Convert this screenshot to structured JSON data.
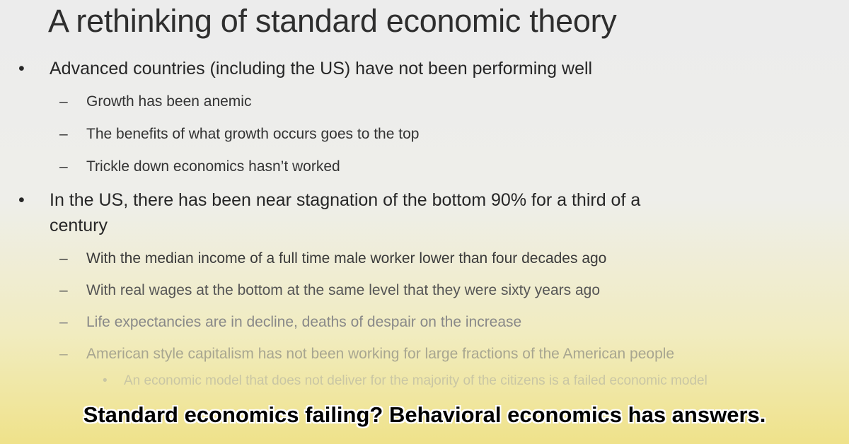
{
  "slide": {
    "title": "A rethinking of standard economic theory",
    "bullets": [
      {
        "text": "Advanced countries (including the US) have not been performing well",
        "subs": [
          "Growth has been anemic",
          "The benefits of what growth occurs goes to the top",
          "Trickle down economics hasn’t worked"
        ]
      },
      {
        "text": "In the US, there has been near stagnation of the bottom 90% for a third of a",
        "text2": "century",
        "subs": [
          "With the median income of a full time male worker lower than four decades ago",
          "With real wages at the bottom at the same level that they were sixty years ago",
          "Life expectancies are in decline, deaths of despair on the increase",
          "American style capitalism has not been working for large fractions of the American people"
        ],
        "subsub": "An economic model that does not deliver for the majority of the citizens is a failed economic model"
      }
    ],
    "bullet_glyph": "•",
    "dash_glyph": "–"
  },
  "caption": "Standard economics failing?  Behavioral economics has answers."
}
